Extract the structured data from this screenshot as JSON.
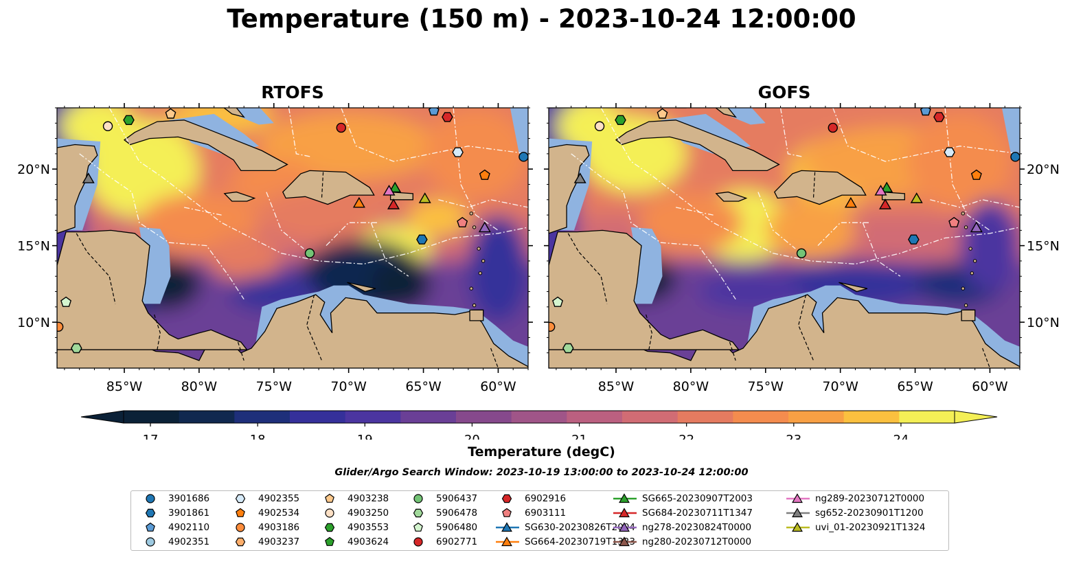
{
  "title": "Temperature (150 m) - 2023-10-24 12:00:00",
  "panels": [
    {
      "name": "RTOFS"
    },
    {
      "name": "GOFS"
    }
  ],
  "lon_ticks": [
    "85°W",
    "80°W",
    "75°W",
    "70°W",
    "65°W",
    "60°W"
  ],
  "lat_ticks": [
    "20°N",
    "15°N",
    "10°N"
  ],
  "map_extent": {
    "lon": [
      -89.5,
      -58.0
    ],
    "lat": [
      7.0,
      24.0
    ]
  },
  "colorbar": {
    "label": "Temperature (degC)",
    "ticks": [
      "17",
      "18",
      "19",
      "20",
      "21",
      "22",
      "23",
      "24"
    ],
    "range": [
      16.75,
      24.5
    ],
    "colors": [
      "#0b2137",
      "#10284f",
      "#1e2f7a",
      "#35309a",
      "#4b35a0",
      "#6a3f96",
      "#86498c",
      "#a05588",
      "#bb6080",
      "#d16c74",
      "#e57b60",
      "#f48c4e",
      "#f8a044",
      "#fbc03f",
      "#f4ef56"
    ],
    "extend": "both"
  },
  "search_window": "Glider/Argo Search Window: 2023-10-19 13:00:00 to 2023-10-24 12:00:00",
  "legend": [
    {
      "label": "3901686",
      "marker": "circle",
      "color": "#1f77b4"
    },
    {
      "label": "3901861",
      "marker": "hexagon",
      "color": "#1f77b4"
    },
    {
      "label": "4902110",
      "marker": "pentagon",
      "color": "#5b9bd5"
    },
    {
      "label": "4902351",
      "marker": "circle",
      "color": "#9ecae1"
    },
    {
      "label": "4902355",
      "marker": "hexagon",
      "color": "#d6eaf8"
    },
    {
      "label": "4902534",
      "marker": "pentagon",
      "color": "#ff7f0e"
    },
    {
      "label": "4903186",
      "marker": "circle",
      "color": "#fd8d3c"
    },
    {
      "label": "4903237",
      "marker": "hexagon",
      "color": "#fdae6b"
    },
    {
      "label": "4903238",
      "marker": "pentagon",
      "color": "#fdc98c"
    },
    {
      "label": "4903250",
      "marker": "circle",
      "color": "#fde0c5"
    },
    {
      "label": "4903553",
      "marker": "hexagon",
      "color": "#2ca02c"
    },
    {
      "label": "4903624",
      "marker": "pentagon",
      "color": "#2ca02c"
    },
    {
      "label": "5906437",
      "marker": "circle",
      "color": "#74c476"
    },
    {
      "label": "5906478",
      "marker": "hexagon",
      "color": "#a1d99b"
    },
    {
      "label": "5906480",
      "marker": "pentagon",
      "color": "#d4f5cf"
    },
    {
      "label": "6902771",
      "marker": "circle",
      "color": "#d62728"
    },
    {
      "label": "6902916",
      "marker": "hexagon",
      "color": "#d62728"
    },
    {
      "label": "6903111",
      "marker": "pentagon",
      "color": "#f08080"
    },
    {
      "label": "SG630-20230826T2004",
      "marker": "triangle-line",
      "color": "#1f77b4"
    },
    {
      "label": "SG664-20230719T1323",
      "marker": "triangle-line",
      "color": "#ff7f0e"
    },
    {
      "label": "SG665-20230907T2003",
      "marker": "triangle-line",
      "color": "#2ca02c"
    },
    {
      "label": "SG684-20230711T1347",
      "marker": "triangle-line",
      "color": "#d62728"
    },
    {
      "label": "ng278-20230824T0000",
      "marker": "triangle-line",
      "color": "#9467bd"
    },
    {
      "label": "ng280-20230712T0000",
      "marker": "triangle-line",
      "color": "#8c564b"
    },
    {
      "label": "ng289-20230712T0000",
      "marker": "triangle-line",
      "color": "#e377c2"
    },
    {
      "label": "sg652-20230901T1200",
      "marker": "triangle-line",
      "color": "#7f7f7f"
    },
    {
      "label": "uvi_01-20230921T1324",
      "marker": "triangle-line",
      "color": "#bcbd22"
    }
  ],
  "observations": [
    {
      "id": "3901686",
      "marker": "circle",
      "color": "#1f77b4",
      "lon": -58.3,
      "lat": 20.8
    },
    {
      "id": "3901861",
      "marker": "hexagon",
      "color": "#1f77b4",
      "lon": -65.1,
      "lat": 15.4
    },
    {
      "id": "4902110",
      "marker": "pentagon",
      "color": "#5b9bd5",
      "lon": -64.3,
      "lat": 23.8
    },
    {
      "id": "4902355",
      "marker": "hexagon",
      "color": "#d6eaf8",
      "lon": -62.7,
      "lat": 21.1
    },
    {
      "id": "4902534",
      "marker": "pentagon",
      "color": "#ff7f0e",
      "lon": -60.9,
      "lat": 19.6
    },
    {
      "id": "4903186",
      "marker": "circle",
      "color": "#fd8d3c",
      "lon": -89.4,
      "lat": 9.7
    },
    {
      "id": "4903238",
      "marker": "pentagon",
      "color": "#fdc98c",
      "lon": -81.9,
      "lat": 23.6
    },
    {
      "id": "4903250",
      "marker": "circle",
      "color": "#fde0c5",
      "lon": -86.1,
      "lat": 22.8
    },
    {
      "id": "4903553",
      "marker": "hexagon",
      "color": "#2ca02c",
      "lon": -84.7,
      "lat": 23.2
    },
    {
      "id": "5906437",
      "marker": "circle",
      "color": "#74c476",
      "lon": -72.6,
      "lat": 14.5
    },
    {
      "id": "5906478",
      "marker": "hexagon",
      "color": "#a1d99b",
      "lon": -88.2,
      "lat": 8.3
    },
    {
      "id": "5906480",
      "marker": "pentagon",
      "color": "#d4f5cf",
      "lon": -88.9,
      "lat": 11.3
    },
    {
      "id": "6902771",
      "marker": "circle",
      "color": "#d62728",
      "lon": -70.5,
      "lat": 22.7
    },
    {
      "id": "6902916",
      "marker": "hexagon",
      "color": "#d62728",
      "lon": -63.4,
      "lat": 23.4
    },
    {
      "id": "6903111",
      "marker": "pentagon",
      "color": "#f08080",
      "lon": -62.4,
      "lat": 16.5
    },
    {
      "id": "SG664-20230719T1323",
      "marker": "triangle",
      "color": "#ff7f0e",
      "lon": -69.3,
      "lat": 17.8
    },
    {
      "id": "SG665-20230907T2003",
      "marker": "triangle",
      "color": "#2ca02c",
      "lon": -66.9,
      "lat": 18.8
    },
    {
      "id": "SG684-20230711T1347",
      "marker": "triangle",
      "color": "#d62728",
      "lon": -67.0,
      "lat": 17.7
    },
    {
      "id": "ng278-20230824T0000",
      "marker": "triangle",
      "color": "#9467bd",
      "lon": -60.9,
      "lat": 16.2
    },
    {
      "id": "ng289-20230712T0000",
      "marker": "triangle",
      "color": "#e377c2",
      "lon": -67.3,
      "lat": 18.6
    },
    {
      "id": "sg652-20230901T1200",
      "marker": "triangle",
      "color": "#7f7f7f",
      "lon": -87.4,
      "lat": 19.4
    },
    {
      "id": "uvi_01-20230921T1324",
      "marker": "triangle",
      "color": "#bcbd22",
      "lon": -64.9,
      "lat": 18.1
    }
  ]
}
